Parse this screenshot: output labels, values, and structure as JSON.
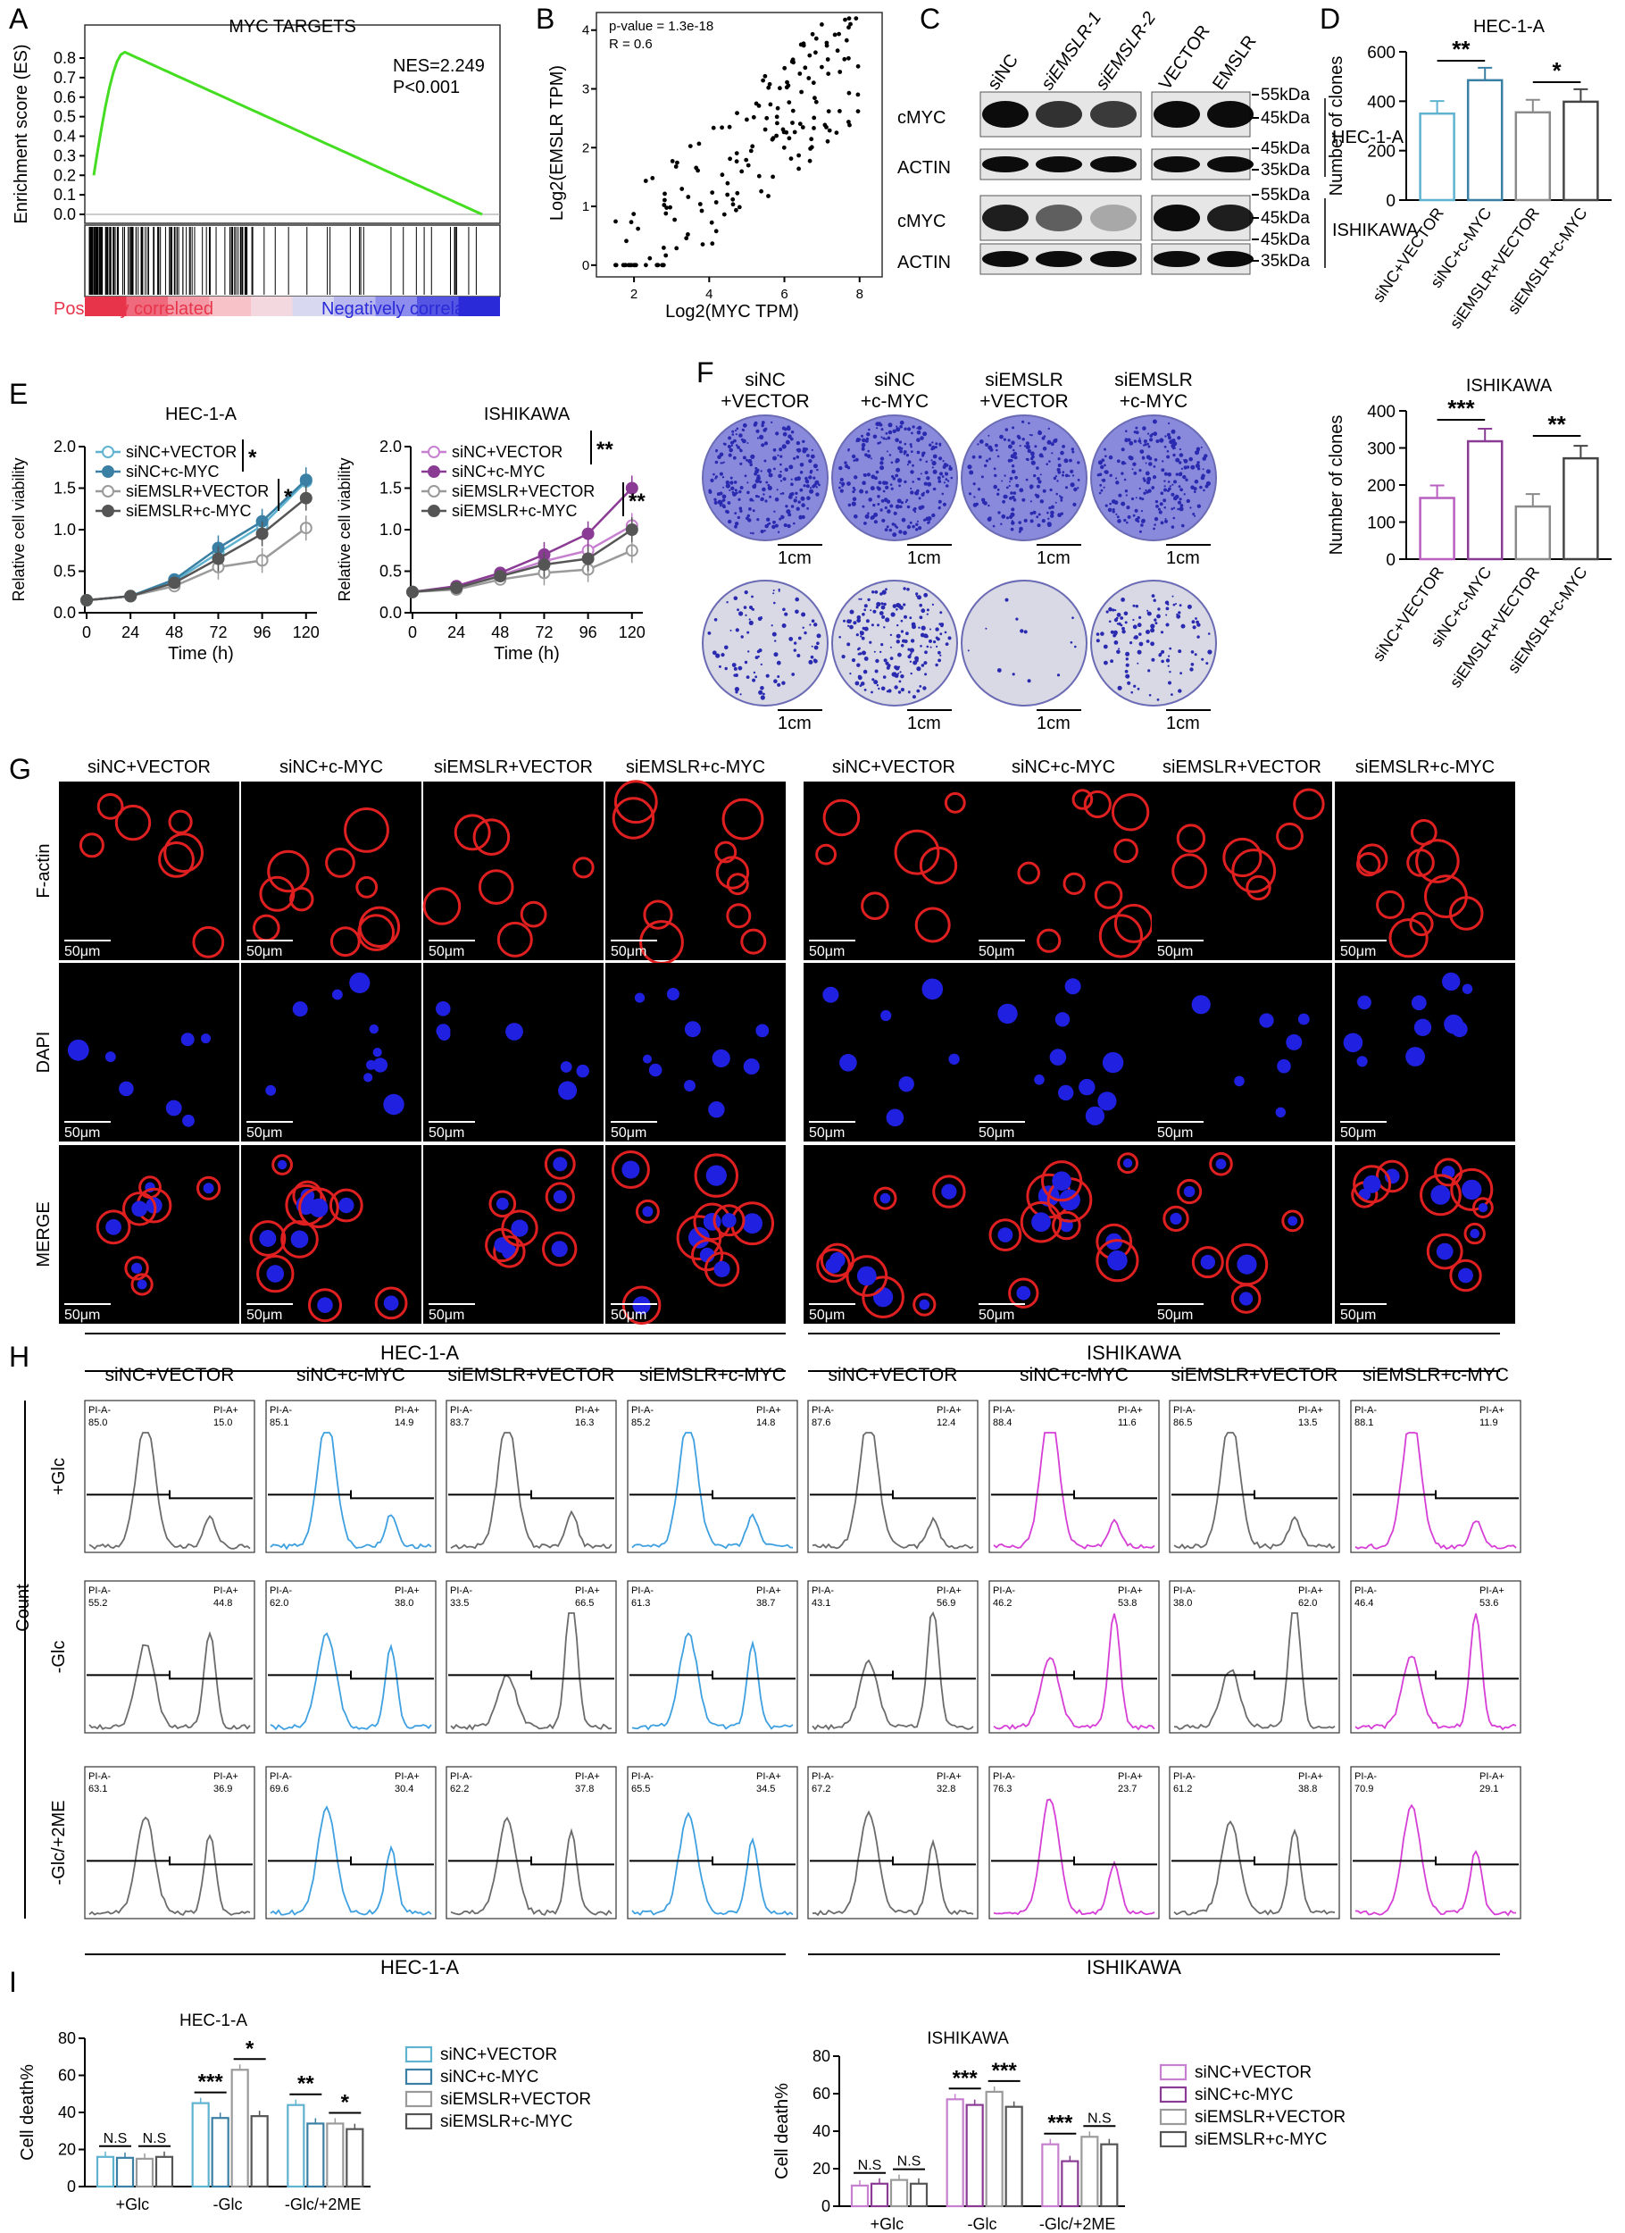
{
  "panel_letters": [
    "A",
    "B",
    "C",
    "D",
    "E",
    "F",
    "G",
    "H",
    "I"
  ],
  "gsea": {
    "title": "MYC TARGETS",
    "nes": "NES=2.249",
    "p": "P<0.001",
    "ylabel": "Enrichment score (ES)",
    "yticks": [
      "0.8",
      "0.7",
      "0.6",
      "0.5",
      "0.4",
      "0.3",
      "0.2",
      "0.1",
      "0.0"
    ],
    "pos_label": "Positively correlated",
    "neg_label": "Negatively correlated",
    "colors": {
      "curve": "#44dd22",
      "pos": "#e8344a",
      "neg": "#2a2ad8"
    }
  },
  "scatter": {
    "pvalue": "p-value = 1.3e-18",
    "r": "R = 0.6",
    "xlabel": "Log2(MYC TPM)",
    "ylabel": "Log2(EMSLR TPM)",
    "xticks": [
      "2",
      "4",
      "6",
      "8"
    ],
    "yticks": [
      "0",
      "1",
      "2",
      "3",
      "4"
    ]
  },
  "western": {
    "lanes": [
      "siNC",
      "siEMSLR-1",
      "siEMSLR-2",
      "VECTOR",
      "EMSLR"
    ],
    "rows": [
      "cMYC",
      "ACTIN",
      "cMYC",
      "ACTIN"
    ],
    "markers": [
      "55kDa",
      "45kDa",
      "45kDa",
      "35kDa",
      "55kDa",
      "45kDa",
      "45kDa",
      "35kDa"
    ],
    "cells": [
      "HEC-1-A",
      "ISHIKAWA"
    ]
  },
  "clones_hec": {
    "title": "HEC-1-A",
    "ylabel": "Number of clones",
    "yticks": [
      "0",
      "200",
      "400",
      "600"
    ],
    "categories": [
      "siNC+VECTOR",
      "siNC+c-MYC",
      "siEMSLR+VECTOR",
      "siEMSLR+c-MYC"
    ],
    "sig": [
      "**",
      "*"
    ]
  },
  "clones_ish": {
    "title": "ISHIKAWA",
    "ylabel": "Number of clones",
    "yticks": [
      "0",
      "100",
      "200",
      "300",
      "400"
    ],
    "categories": [
      "siNC+VECTOR",
      "siNC+c-MYC",
      "siEMSLR+VECTOR",
      "siEMSLR+c-MYC"
    ],
    "sig": [
      "***",
      "**"
    ]
  },
  "viability": {
    "ylabel": "Relative cell viability",
    "xlabel": "Time (h)",
    "xticks": [
      "0",
      "24",
      "48",
      "72",
      "96",
      "120"
    ],
    "yticks": [
      "0.0",
      "0.5",
      "1.0",
      "1.5",
      "2.0"
    ],
    "hec_title": "HEC-1-A",
    "ish_title": "ISHIKAWA",
    "legend": [
      "siNC+VECTOR",
      "siNC+c-MYC",
      "siEMSLR+VECTOR",
      "siEMSLR+c-MYC"
    ],
    "hec_sig": [
      "*",
      "*"
    ],
    "ish_sig": [
      "**",
      "**"
    ]
  },
  "colony": {
    "cols": [
      [
        "siNC",
        "+VECTOR"
      ],
      [
        "siNC",
        "+c-MYC"
      ],
      [
        "siEMSLR",
        "+VECTOR"
      ],
      [
        "siEMSLR",
        "+c-MYC"
      ]
    ],
    "rows": [
      "HEC-1-A",
      "ISHIKAWA"
    ],
    "scale": "1cm"
  },
  "if": {
    "cols": [
      "siNC+VECTOR",
      "siNC+c-MYC",
      "siEMSLR+VECTOR",
      "siEMSLR+c-MYC",
      "siNC+VECTOR",
      "siNC+c-MYC",
      "siEMSLR+VECTOR",
      "siEMSLR+c-MYC"
    ],
    "rows": [
      "F-actin",
      "DAPI",
      "MERGE"
    ],
    "scale": "50μm"
  },
  "flow": {
    "cells": [
      "HEC-1-A",
      "ISHIKAWA"
    ],
    "cols": [
      "siNC+VECTOR",
      "siNC+c-MYC",
      "siEMSLR+VECTOR",
      "siEMSLR+c-MYC",
      "siNC+VECTOR",
      "siNC+c-MYC",
      "siEMSLR+VECTOR",
      "siEMSLR+c-MYC"
    ],
    "rows": [
      "+Glc",
      "-Glc",
      "-Glc/+2ME"
    ],
    "ylabel": "Count",
    "neg_label": "PI-A-",
    "pos_label": "PI-A+",
    "values": [
      [
        [
          "85.0",
          "15.0"
        ],
        [
          "85.1",
          "14.9"
        ],
        [
          "83.7",
          "16.3"
        ],
        [
          "85.2",
          "14.8"
        ],
        [
          "87.6",
          "12.4"
        ],
        [
          "88.4",
          "11.6"
        ],
        [
          "86.5",
          "13.5"
        ],
        [
          "88.1",
          "11.9"
        ]
      ],
      [
        [
          "55.2",
          "44.8"
        ],
        [
          "62.0",
          "38.0"
        ],
        [
          "33.5",
          "66.5"
        ],
        [
          "61.3",
          "38.7"
        ],
        [
          "43.1",
          "56.9"
        ],
        [
          "46.2",
          "53.8"
        ],
        [
          "38.0",
          "62.0"
        ],
        [
          "46.4",
          "53.6"
        ]
      ],
      [
        [
          "63.1",
          "36.9"
        ],
        [
          "69.6",
          "30.4"
        ],
        [
          "62.2",
          "37.8"
        ],
        [
          "65.5",
          "34.5"
        ],
        [
          "67.2",
          "32.8"
        ],
        [
          "76.3",
          "23.7"
        ],
        [
          "61.2",
          "38.8"
        ],
        [
          "70.9",
          "29.1"
        ]
      ]
    ],
    "colors": {
      "gray": "#6b6b6b",
      "blue": "#3fa0e0",
      "magenta": "#d63fd6"
    }
  },
  "death": {
    "ylabel": "Cell death%",
    "hec_title": "HEC-1-A",
    "ish_title": "ISHIKAWA",
    "hec_yticks": [
      "0",
      "20",
      "40",
      "60",
      "80"
    ],
    "ish_yticks": [
      "0",
      "20",
      "40",
      "60",
      "80"
    ],
    "groups": [
      "+Glc",
      "-Glc",
      "-Glc/+2ME"
    ],
    "legend": [
      "siNC+VECTOR",
      "siNC+c-MYC",
      "siEMSLR+VECTOR",
      "siEMSLR+c-MYC"
    ],
    "hec_sig": [
      "N.S",
      "N.S",
      "***",
      "*",
      "**",
      "*"
    ],
    "ish_sig": [
      "N.S",
      "N.S",
      "***",
      "***",
      "***",
      "N.S"
    ]
  },
  "chart_data": [
    {
      "type": "line",
      "title": "HEC-1-A",
      "xlabel": "Time (h)",
      "ylabel": "Relative cell viability",
      "x": [
        0,
        24,
        48,
        72,
        96,
        120
      ],
      "ylim": [
        0,
        2.0
      ],
      "series": [
        {
          "name": "siNC+VECTOR",
          "values": [
            0.15,
            0.2,
            0.38,
            0.72,
            1.05,
            1.58
          ]
        },
        {
          "name": "siNC+c-MYC",
          "values": [
            0.15,
            0.2,
            0.4,
            0.78,
            1.1,
            1.6
          ]
        },
        {
          "name": "siEMSLR+VECTOR",
          "values": [
            0.15,
            0.2,
            0.32,
            0.55,
            0.63,
            1.02
          ]
        },
        {
          "name": "siEMSLR+c-MYC",
          "values": [
            0.15,
            0.2,
            0.36,
            0.65,
            0.95,
            1.38
          ]
        }
      ]
    },
    {
      "type": "line",
      "title": "ISHIKAWA",
      "xlabel": "Time (h)",
      "ylabel": "Relative cell viability",
      "x": [
        0,
        24,
        48,
        72,
        96,
        120
      ],
      "ylim": [
        0,
        2.0
      ],
      "series": [
        {
          "name": "siNC+VECTOR",
          "values": [
            0.25,
            0.3,
            0.45,
            0.62,
            0.75,
            1.05
          ]
        },
        {
          "name": "siNC+c-MYC",
          "values": [
            0.25,
            0.32,
            0.48,
            0.7,
            0.95,
            1.5
          ]
        },
        {
          "name": "siEMSLR+VECTOR",
          "values": [
            0.25,
            0.28,
            0.4,
            0.48,
            0.52,
            0.75
          ]
        },
        {
          "name": "siEMSLR+c-MYC",
          "values": [
            0.25,
            0.3,
            0.44,
            0.58,
            0.65,
            1.0
          ]
        }
      ]
    },
    {
      "type": "bar",
      "title": "HEC-1-A",
      "ylabel": "Number of clones",
      "categories": [
        "siNC+VECTOR",
        "siNC+c-MYC",
        "siEMSLR+VECTOR",
        "siEMSLR+c-MYC"
      ],
      "values": [
        350,
        485,
        355,
        398
      ],
      "ylim": [
        0,
        600
      ]
    },
    {
      "type": "bar",
      "title": "ISHIKAWA",
      "ylabel": "Number of clones",
      "categories": [
        "siNC+VECTOR",
        "siNC+c-MYC",
        "siEMSLR+VECTOR",
        "siEMSLR+c-MYC"
      ],
      "values": [
        165,
        318,
        142,
        272
      ],
      "ylim": [
        0,
        400
      ]
    },
    {
      "type": "bar",
      "title": "HEC-1-A",
      "ylabel": "Cell death%",
      "categories": [
        "+Glc",
        "-Glc",
        "-Glc/+2ME"
      ],
      "ylim": [
        0,
        80
      ],
      "series": [
        {
          "name": "siNC+VECTOR",
          "values": [
            16,
            45,
            44
          ]
        },
        {
          "name": "siNC+c-MYC",
          "values": [
            15.5,
            37,
            34
          ]
        },
        {
          "name": "siEMSLR+VECTOR",
          "values": [
            15,
            63,
            34
          ]
        },
        {
          "name": "siEMSLR+c-MYC",
          "values": [
            16,
            38,
            31
          ]
        }
      ]
    },
    {
      "type": "bar",
      "title": "ISHIKAWA",
      "ylabel": "Cell death%",
      "categories": [
        "+Glc",
        "-Glc",
        "-Glc/+2ME"
      ],
      "ylim": [
        0,
        80
      ],
      "series": [
        {
          "name": "siNC+VECTOR",
          "values": [
            11,
            57,
            33
          ]
        },
        {
          "name": "siNC+c-MYC",
          "values": [
            12,
            54,
            24
          ]
        },
        {
          "name": "siEMSLR+VECTOR",
          "values": [
            14,
            61,
            37
          ]
        },
        {
          "name": "siEMSLR+c-MYC",
          "values": [
            12,
            53,
            33
          ]
        }
      ]
    }
  ]
}
